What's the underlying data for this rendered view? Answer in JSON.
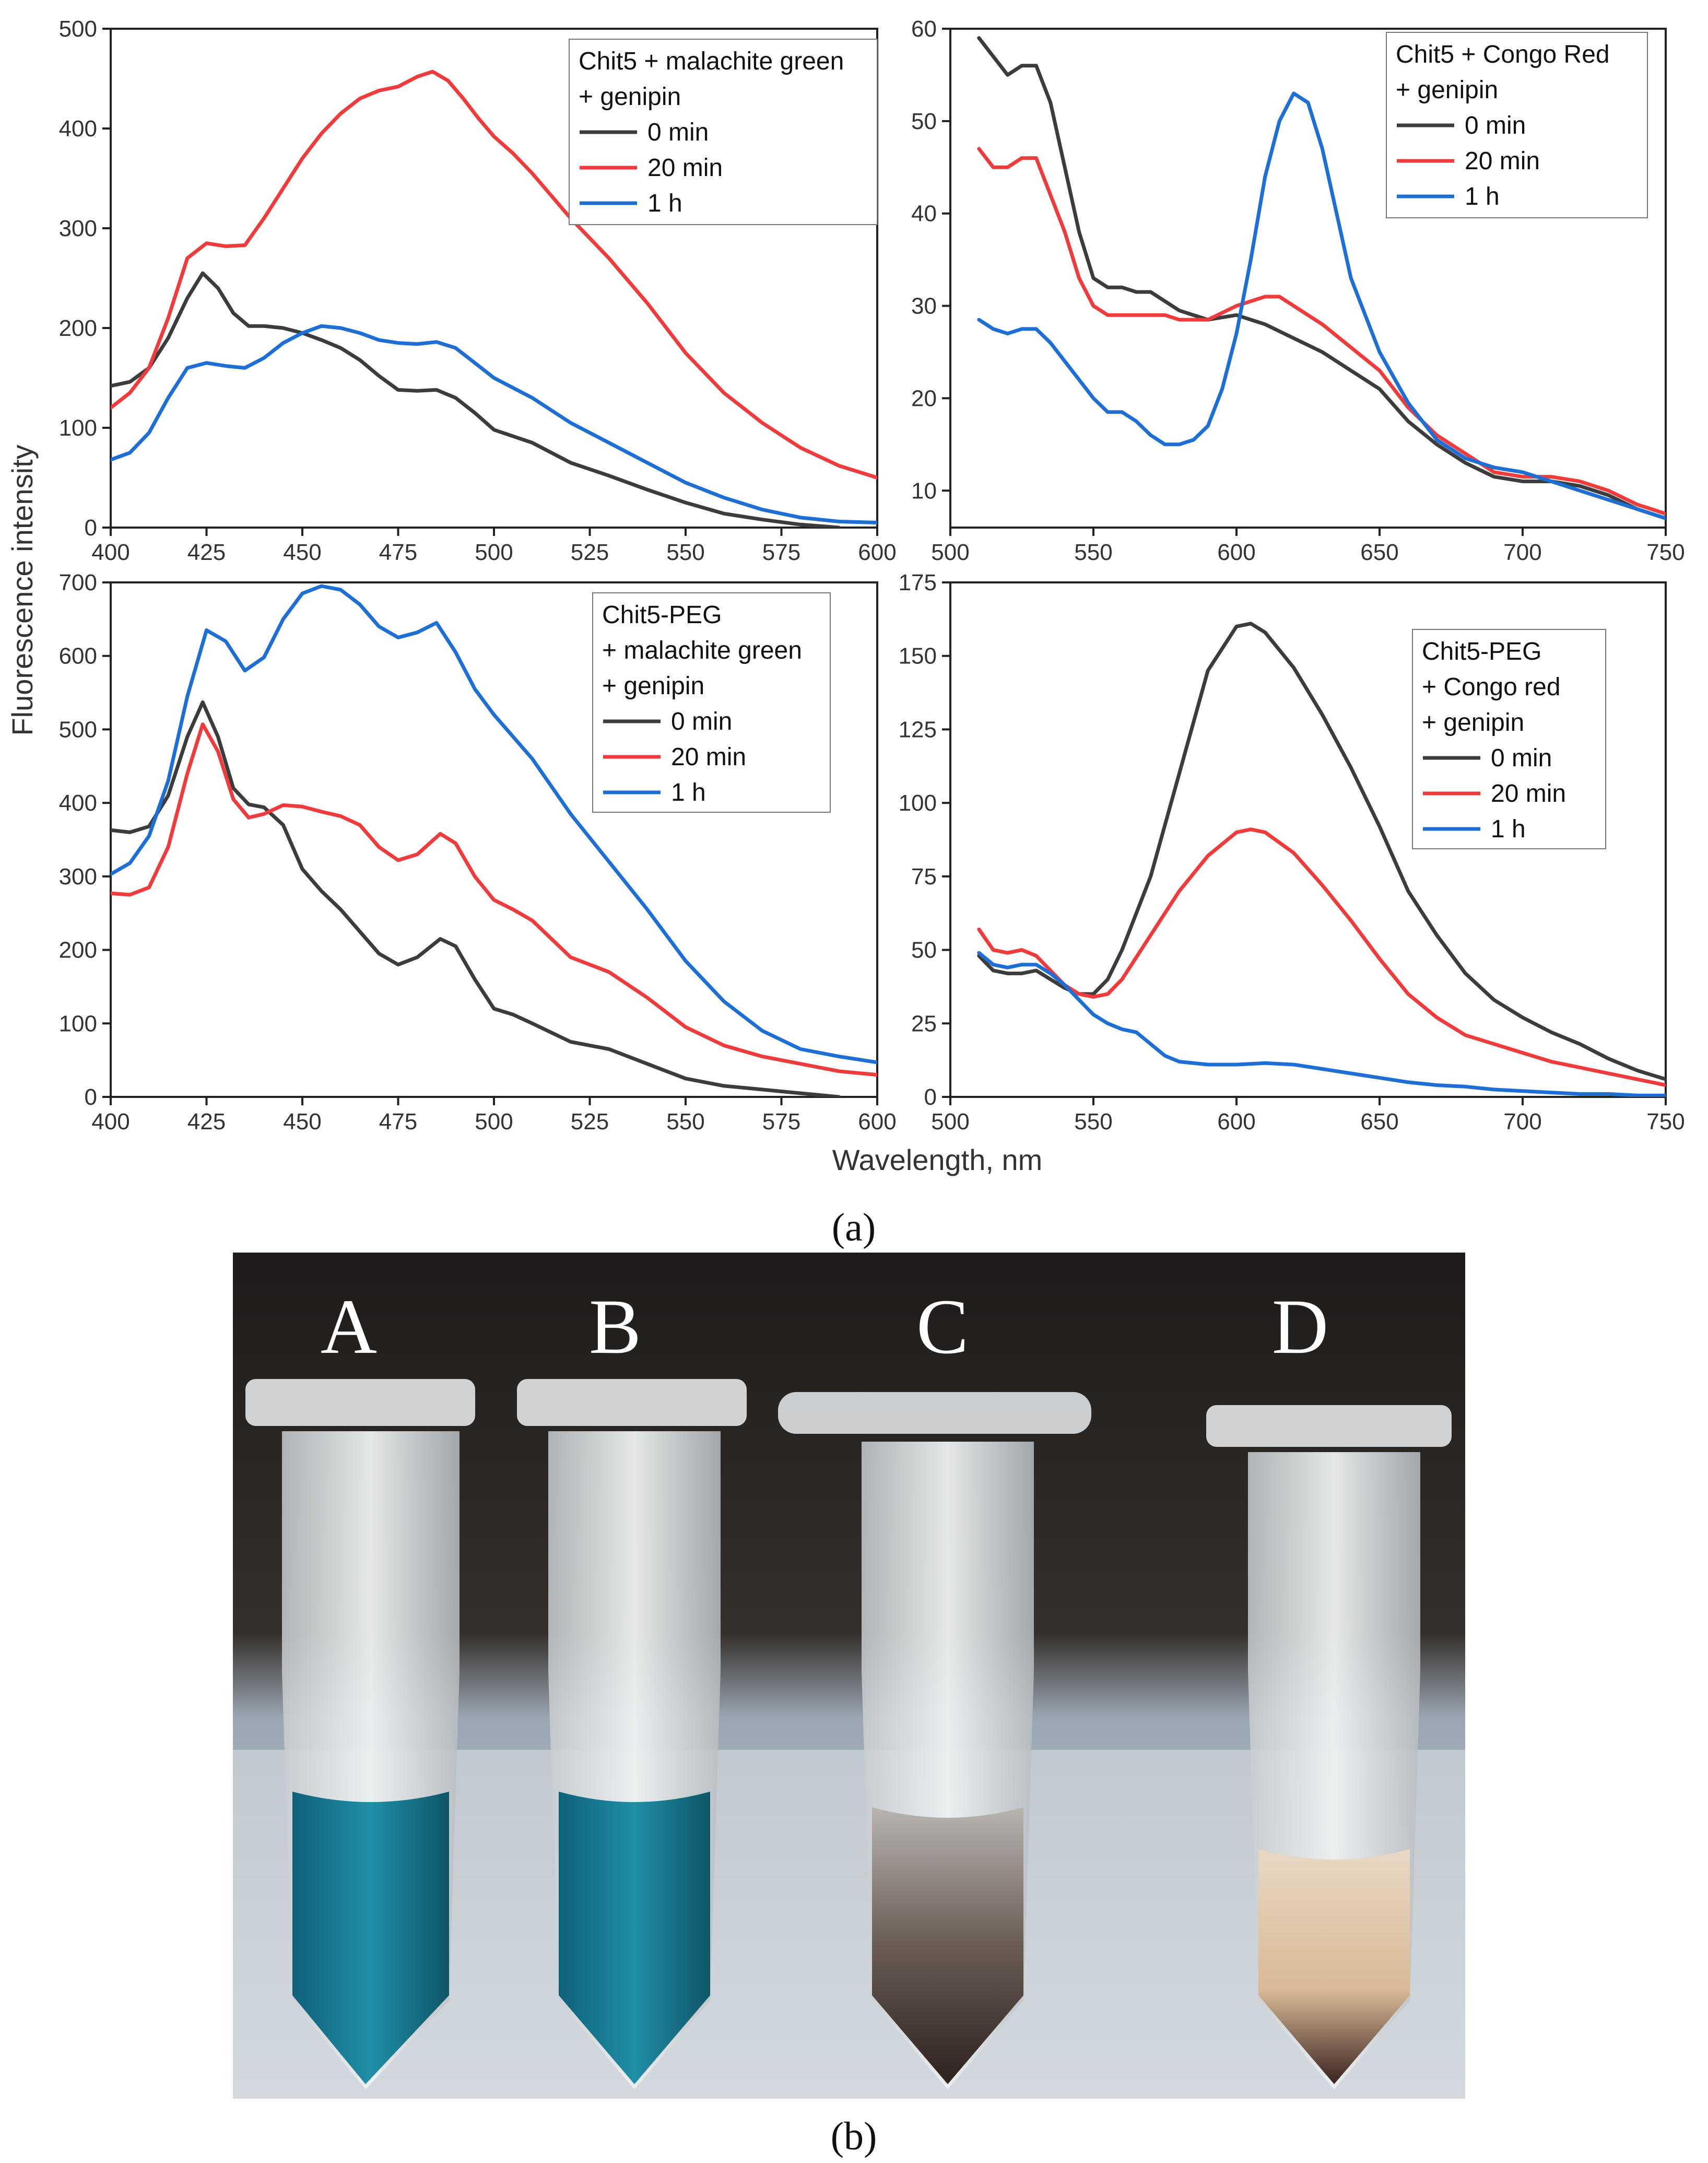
{
  "figure": {
    "xlabel": "Wavelength, nm",
    "ylabel": "Fluorescence intensity",
    "label_a": "(a)",
    "label_b": "(b)",
    "legend_entries": [
      "0 min",
      "20 min",
      "1 h"
    ],
    "colors": {
      "0 min": "#3c3c3c",
      "20 min": "#ef3b3b",
      "1 h": "#1d6fd6"
    }
  },
  "photo": {
    "tube_labels": [
      "A",
      "B",
      "C",
      "D"
    ],
    "colors": {
      "background": "#2a2522",
      "malachite_green": "#1e7f95",
      "congo_red_pellet": "#3a2420",
      "tube": "#d9dde0"
    }
  },
  "chart_data": [
    {
      "type": "line",
      "title": "Chit5 + malachite green + genipin",
      "title_lines": [
        "Chit5 + malachite green",
        "+ genipin"
      ],
      "xlabel": "",
      "ylabel": "",
      "xlim": [
        400,
        600
      ],
      "ylim": [
        0,
        500
      ],
      "xticks": [
        400,
        425,
        450,
        475,
        500,
        525,
        550,
        575,
        600
      ],
      "yticks": [
        0,
        100,
        200,
        300,
        400,
        500
      ],
      "legend_position": "top-right",
      "series": [
        {
          "name": "0 min",
          "x": [
            400,
            405,
            410,
            415,
            420,
            424,
            428,
            432,
            436,
            440,
            445,
            450,
            455,
            460,
            465,
            470,
            475,
            480,
            485,
            490,
            495,
            500,
            510,
            520,
            530,
            540,
            550,
            560,
            570,
            580,
            590
          ],
          "y": [
            142,
            146,
            160,
            190,
            230,
            255,
            240,
            215,
            202,
            202,
            200,
            195,
            188,
            180,
            168,
            152,
            138,
            137,
            138,
            130,
            115,
            98,
            85,
            65,
            52,
            38,
            25,
            14,
            8,
            3,
            0
          ]
        },
        {
          "name": "20 min",
          "x": [
            400,
            405,
            410,
            415,
            420,
            425,
            430,
            435,
            440,
            445,
            450,
            455,
            460,
            465,
            470,
            475,
            480,
            484,
            488,
            492,
            496,
            500,
            505,
            510,
            520,
            530,
            540,
            550,
            560,
            570,
            580,
            590,
            600
          ],
          "y": [
            120,
            135,
            160,
            210,
            270,
            285,
            282,
            283,
            310,
            340,
            370,
            395,
            415,
            430,
            438,
            442,
            452,
            457,
            448,
            430,
            410,
            392,
            375,
            355,
            310,
            270,
            225,
            175,
            135,
            105,
            80,
            62,
            50
          ]
        },
        {
          "name": "1 h",
          "x": [
            400,
            405,
            410,
            415,
            420,
            425,
            430,
            435,
            440,
            445,
            450,
            455,
            460,
            465,
            470,
            475,
            480,
            485,
            490,
            495,
            500,
            510,
            520,
            530,
            540,
            550,
            560,
            570,
            580,
            590,
            600
          ],
          "y": [
            68,
            75,
            95,
            130,
            160,
            165,
            162,
            160,
            170,
            185,
            195,
            202,
            200,
            195,
            188,
            185,
            184,
            186,
            180,
            165,
            150,
            130,
            105,
            85,
            65,
            45,
            30,
            18,
            10,
            6,
            5
          ]
        }
      ]
    },
    {
      "type": "line",
      "title": "Chit5 + Congo Red + genipin",
      "title_lines": [
        "Chit5 + Congo Red",
        "+ genipin"
      ],
      "xlabel": "",
      "ylabel": "",
      "xlim": [
        500,
        750
      ],
      "ylim": [
        6,
        60
      ],
      "xticks": [
        500,
        550,
        600,
        650,
        700,
        750
      ],
      "yticks": [
        10,
        20,
        30,
        40,
        50,
        60
      ],
      "legend_position": "top-right",
      "series": [
        {
          "name": "0 min",
          "x": [
            510,
            515,
            520,
            525,
            530,
            535,
            540,
            545,
            550,
            555,
            560,
            565,
            570,
            575,
            580,
            590,
            600,
            610,
            620,
            630,
            640,
            650,
            660,
            670,
            680,
            690,
            700,
            710,
            720,
            730,
            740,
            750
          ],
          "y": [
            59,
            57,
            55,
            56,
            56,
            52,
            45,
            38,
            33,
            32,
            32,
            31.5,
            31.5,
            30.5,
            29.5,
            28.5,
            29,
            28,
            26.5,
            25,
            23,
            21,
            17.5,
            15,
            13,
            11.5,
            11,
            11,
            10.5,
            9.5,
            8,
            7
          ]
        },
        {
          "name": "20 min",
          "x": [
            510,
            515,
            520,
            525,
            530,
            535,
            540,
            545,
            550,
            555,
            560,
            565,
            570,
            575,
            580,
            590,
            600,
            610,
            615,
            620,
            630,
            640,
            650,
            660,
            670,
            680,
            690,
            700,
            710,
            720,
            730,
            740,
            750
          ],
          "y": [
            47,
            45,
            45,
            46,
            46,
            42,
            38,
            33,
            30,
            29,
            29,
            29,
            29,
            29,
            28.5,
            28.5,
            30,
            31,
            31,
            30,
            28,
            25.5,
            23,
            19,
            16,
            14,
            12,
            11.5,
            11.5,
            11,
            10,
            8.5,
            7.5
          ]
        },
        {
          "name": "1 h",
          "x": [
            510,
            515,
            520,
            525,
            530,
            535,
            540,
            545,
            550,
            555,
            560,
            565,
            570,
            575,
            580,
            585,
            590,
            595,
            600,
            605,
            610,
            615,
            620,
            625,
            630,
            635,
            640,
            650,
            660,
            670,
            680,
            690,
            700,
            710,
            720,
            730,
            740,
            750
          ],
          "y": [
            28.5,
            27.5,
            27,
            27.5,
            27.5,
            26,
            24,
            22,
            20,
            18.5,
            18.5,
            17.5,
            16,
            15,
            15,
            15.5,
            17,
            21,
            27,
            35,
            44,
            50,
            53,
            52,
            47,
            40,
            33,
            25,
            19.5,
            15.5,
            13.5,
            12.5,
            12,
            11,
            10,
            9,
            8,
            7
          ]
        }
      ]
    },
    {
      "type": "line",
      "title": "Chit5-PEG + malachite green + genipin",
      "title_lines": [
        "Chit5-PEG",
        "+ malachite green",
        "+ genipin"
      ],
      "xlabel": "",
      "ylabel": "",
      "xlim": [
        400,
        600
      ],
      "ylim": [
        0,
        700
      ],
      "xticks": [
        400,
        425,
        450,
        475,
        500,
        525,
        550,
        575,
        600
      ],
      "yticks": [
        0,
        100,
        200,
        300,
        400,
        500,
        600,
        700
      ],
      "legend_position": "top-right",
      "series": [
        {
          "name": "0 min",
          "x": [
            400,
            405,
            410,
            415,
            420,
            424,
            428,
            432,
            436,
            440,
            445,
            450,
            455,
            460,
            465,
            470,
            475,
            480,
            486,
            490,
            495,
            500,
            505,
            510,
            520,
            530,
            540,
            550,
            560,
            570,
            580,
            590
          ],
          "y": [
            363,
            360,
            368,
            410,
            490,
            537,
            490,
            420,
            398,
            394,
            370,
            310,
            280,
            255,
            225,
            195,
            180,
            190,
            215,
            205,
            160,
            120,
            112,
            100,
            75,
            65,
            45,
            25,
            15,
            10,
            5,
            0
          ]
        },
        {
          "name": "20 min",
          "x": [
            400,
            405,
            410,
            415,
            420,
            424,
            428,
            432,
            436,
            440,
            445,
            450,
            455,
            460,
            465,
            470,
            475,
            480,
            486,
            490,
            495,
            500,
            505,
            510,
            520,
            530,
            540,
            550,
            560,
            570,
            580,
            590,
            600
          ],
          "y": [
            277,
            275,
            285,
            340,
            440,
            507,
            470,
            405,
            380,
            385,
            397,
            395,
            388,
            382,
            370,
            340,
            322,
            330,
            358,
            345,
            300,
            268,
            255,
            240,
            190,
            170,
            135,
            95,
            70,
            55,
            45,
            35,
            30
          ]
        },
        {
          "name": "1 h",
          "x": [
            400,
            405,
            410,
            415,
            420,
            425,
            430,
            435,
            440,
            445,
            450,
            455,
            460,
            465,
            470,
            475,
            480,
            485,
            490,
            495,
            500,
            505,
            510,
            520,
            530,
            540,
            550,
            560,
            570,
            580,
            590,
            600
          ],
          "y": [
            303,
            318,
            355,
            430,
            545,
            635,
            620,
            580,
            598,
            650,
            685,
            695,
            690,
            670,
            640,
            625,
            632,
            645,
            605,
            555,
            520,
            490,
            460,
            385,
            320,
            255,
            185,
            130,
            90,
            65,
            55,
            47
          ]
        }
      ]
    },
    {
      "type": "line",
      "title": "Chit5-PEG + Congo red + genipin",
      "title_lines": [
        "Chit5-PEG",
        "+ Congo red",
        "+ genipin"
      ],
      "xlabel": "",
      "ylabel": "",
      "xlim": [
        500,
        750
      ],
      "ylim": [
        0,
        175
      ],
      "xticks": [
        500,
        550,
        600,
        650,
        700,
        750
      ],
      "yticks": [
        0,
        25,
        50,
        75,
        100,
        125,
        150,
        175
      ],
      "legend_position": "top-right",
      "series": [
        {
          "name": "0 min",
          "x": [
            510,
            515,
            520,
            525,
            530,
            535,
            540,
            545,
            550,
            555,
            560,
            570,
            580,
            590,
            600,
            605,
            610,
            620,
            630,
            640,
            650,
            660,
            670,
            680,
            690,
            700,
            710,
            720,
            730,
            740,
            750
          ],
          "y": [
            48,
            43,
            42,
            42,
            43,
            40,
            37,
            35,
            35,
            40,
            50,
            75,
            110,
            145,
            160,
            161,
            158,
            146,
            130,
            112,
            92,
            70,
            55,
            42,
            33,
            27,
            22,
            18,
            13,
            9,
            6
          ]
        },
        {
          "name": "20 min",
          "x": [
            510,
            515,
            520,
            525,
            530,
            535,
            540,
            545,
            550,
            555,
            560,
            570,
            580,
            590,
            600,
            605,
            610,
            620,
            630,
            640,
            650,
            660,
            670,
            680,
            690,
            700,
            710,
            720,
            730,
            740,
            750
          ],
          "y": [
            57,
            50,
            49,
            50,
            48,
            43,
            38,
            35,
            34,
            35,
            40,
            55,
            70,
            82,
            90,
            91,
            90,
            83,
            72,
            60,
            47,
            35,
            27,
            21,
            18,
            15,
            12,
            10,
            8,
            6,
            4
          ]
        },
        {
          "name": "1 h",
          "x": [
            510,
            515,
            520,
            525,
            530,
            535,
            540,
            545,
            550,
            555,
            560,
            565,
            570,
            575,
            580,
            590,
            600,
            610,
            620,
            630,
            640,
            650,
            660,
            670,
            680,
            690,
            700,
            710,
            720,
            730,
            740,
            750
          ],
          "y": [
            49,
            45,
            44,
            45,
            45,
            42,
            38,
            33,
            28,
            25,
            23,
            22,
            18,
            14,
            12,
            11,
            11,
            11.5,
            11,
            9.5,
            8,
            6.5,
            5,
            4,
            3.5,
            2.5,
            2,
            1.5,
            1,
            1,
            0.5,
            0.5
          ]
        }
      ]
    }
  ]
}
